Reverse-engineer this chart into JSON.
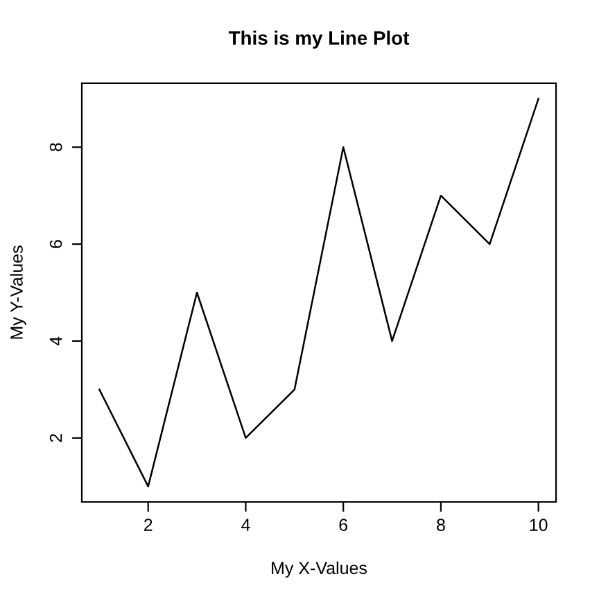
{
  "chart_data": {
    "type": "line",
    "title": "This is my Line Plot",
    "xlabel": "My X-Values",
    "ylabel": "My Y-Values",
    "x": [
      1,
      2,
      3,
      4,
      5,
      6,
      7,
      8,
      9,
      10
    ],
    "series": [
      {
        "color": "#000000",
        "values": [
          3,
          1,
          5,
          2,
          3,
          8,
          4,
          7,
          6,
          9
        ]
      }
    ],
    "xlim": [
      0.64,
      10.36
    ],
    "ylim": [
      0.68,
      9.32
    ],
    "xticks": [
      2,
      4,
      6,
      8,
      10
    ],
    "yticks": [
      2,
      4,
      6,
      8
    ],
    "grid": false,
    "legend": false,
    "marker": "none",
    "line_style": "solid"
  }
}
